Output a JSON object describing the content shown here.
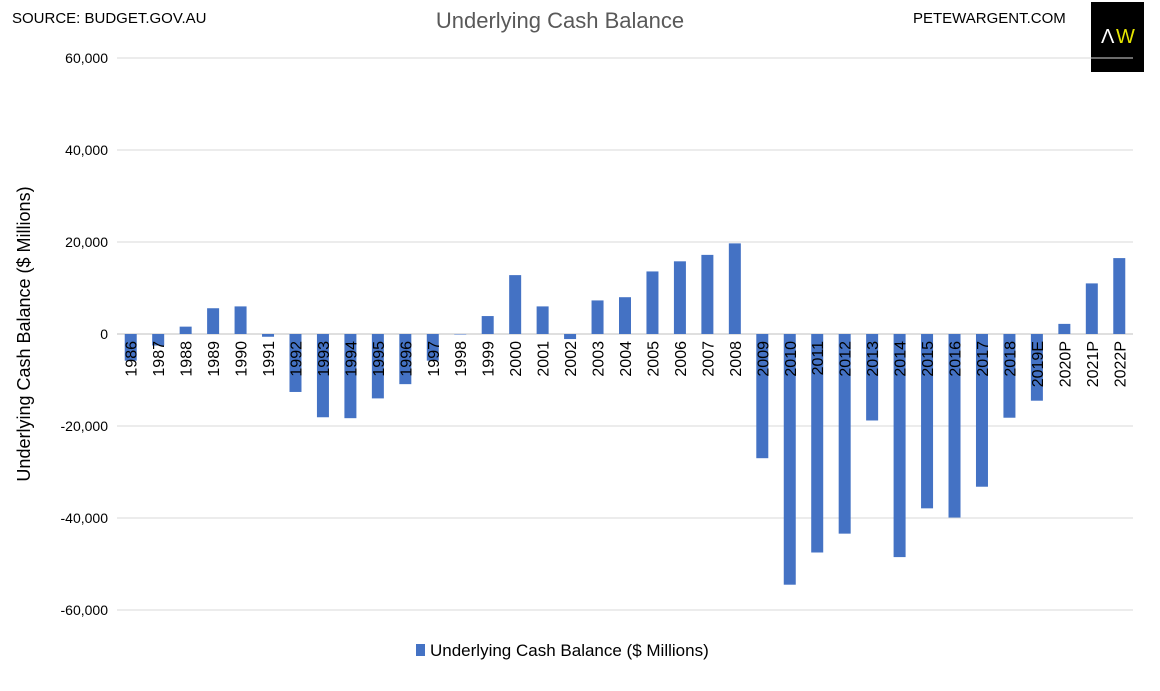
{
  "header": {
    "source": "SOURCE: BUDGET.GOV.AU",
    "site": "PETEWARGENT.COM",
    "logo_text": "AW"
  },
  "colors": {
    "bar": "#4472C4",
    "grid": "#D9D9D9",
    "logo_a": "#FFFFFF",
    "logo_w": "#E6E600"
  },
  "chart_data": {
    "type": "bar",
    "title": "Underlying Cash Balance",
    "xlabel": "",
    "ylabel": "Underlying Cash Balance ($ Millions)",
    "ylim": [
      -60000,
      60000
    ],
    "yticks": [
      60000,
      40000,
      20000,
      0,
      -20000,
      -40000,
      -60000
    ],
    "ytick_labels": [
      "60,000",
      "40,000",
      "20,000",
      "0",
      "-20,000",
      "-40,000",
      "-60,000"
    ],
    "grid": true,
    "legend": "bottom",
    "categories": [
      "1986",
      "1987",
      "1988",
      "1989",
      "1990",
      "1991",
      "1992",
      "1993",
      "1994",
      "1995",
      "1996",
      "1997",
      "1998",
      "1999",
      "2000",
      "2001",
      "2002",
      "2003",
      "2004",
      "2005",
      "2006",
      "2007",
      "2008",
      "2009",
      "2010",
      "2011",
      "2012",
      "2013",
      "2014",
      "2015",
      "2016",
      "2017",
      "2018",
      "2019E",
      "2020P",
      "2021P",
      "2022P"
    ],
    "series": [
      {
        "name": "Underlying Cash Balance ($ Millions)",
        "values": [
          -5800,
          -2500,
          1600,
          5600,
          6000,
          -600,
          -12600,
          -18100,
          -18300,
          -14000,
          -10900,
          -5800,
          0,
          3900,
          12800,
          6000,
          -1100,
          7300,
          8000,
          13600,
          15800,
          17200,
          19700,
          -27000,
          -54500,
          -47500,
          -43400,
          -18800,
          -48500,
          -37900,
          -39900,
          -33200,
          -18200,
          -14500,
          2200,
          11000,
          16500
        ]
      }
    ]
  }
}
